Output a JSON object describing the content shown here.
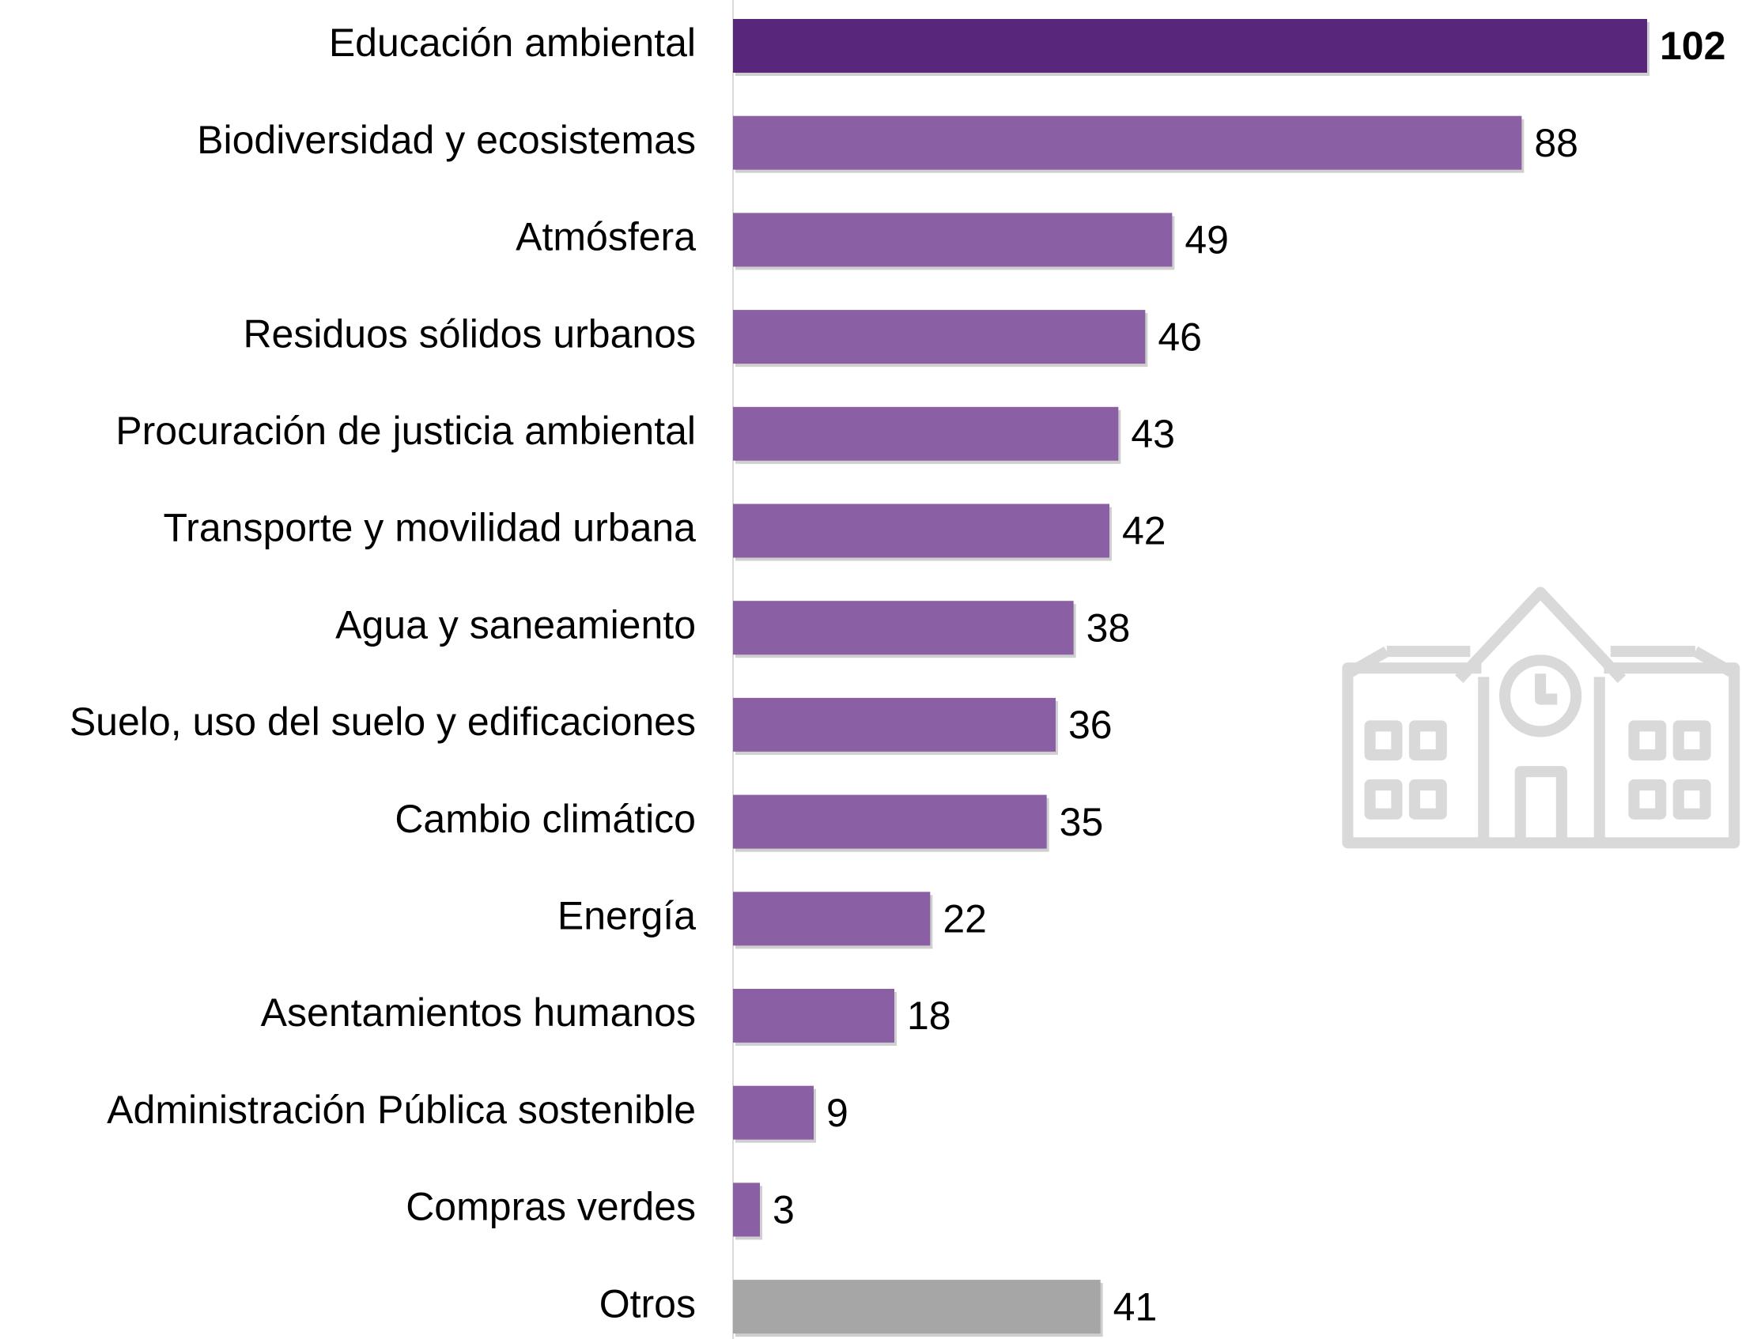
{
  "chart_data": {
    "type": "bar",
    "categories": [
      "Educación ambiental",
      "Biodiversidad y ecosistemas",
      "Atmósfera",
      "Residuos sólidos urbanos",
      "Procuración de justicia ambiental",
      "Transporte y movilidad urbana",
      "Agua y saneamiento",
      "Suelo, uso del suelo y edificaciones",
      "Cambio climático",
      "Energía",
      "Asentamientos humanos",
      "Administración Pública sostenible",
      "Compras verdes",
      "Otros"
    ],
    "values": [
      102,
      88,
      49,
      46,
      43,
      42,
      38,
      36,
      35,
      22,
      18,
      9,
      3,
      41
    ],
    "colors": [
      "#58267a",
      "#8b5fa3",
      "#8b5fa3",
      "#8b5fa3",
      "#8b5fa3",
      "#8b5fa3",
      "#8b5fa3",
      "#8b5fa3",
      "#8b5fa3",
      "#8b5fa3",
      "#8b5fa3",
      "#8b5fa3",
      "#8b5fa3",
      "#a6a6a6"
    ]
  }
}
